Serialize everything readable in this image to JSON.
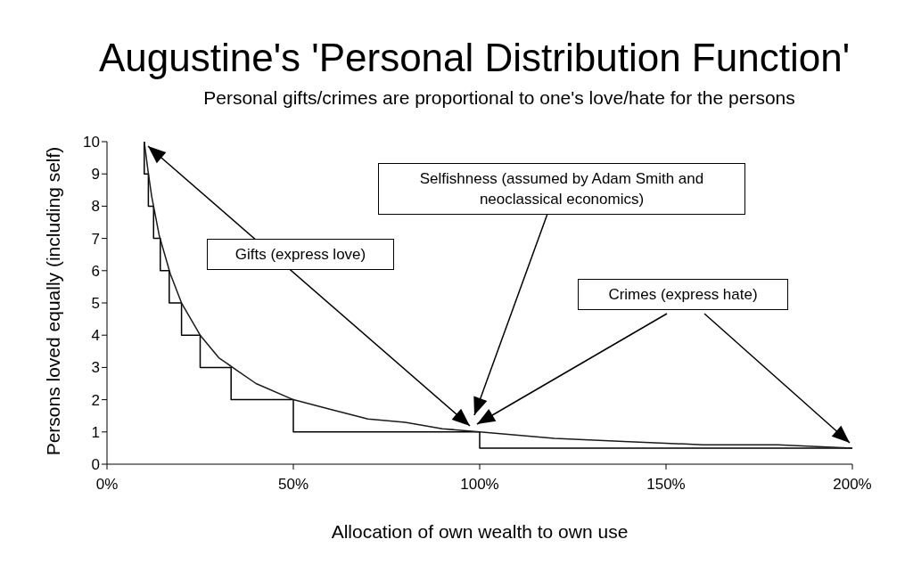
{
  "chart_data": {
    "type": "line",
    "title": "Augustine's 'Personal Distribution Function'",
    "subtitle": "Personal gifts/crimes are proportional to one's love/hate for the persons",
    "xlabel": "Allocation of own wealth to own use",
    "ylabel": "Persons loved equally (including self)",
    "series": [
      {
        "type": "step",
        "color": "#000000",
        "x": [
          10,
          10,
          11.1,
          12.5,
          14.3,
          16.7,
          20,
          25,
          33.3,
          50,
          100,
          200
        ],
        "values": [
          10,
          9,
          8,
          7,
          6,
          5,
          4,
          3,
          2,
          1,
          0.5,
          0.5
        ]
      },
      {
        "color": "#1a1a1a",
        "x": [
          10,
          11,
          12,
          13,
          14,
          15,
          17,
          20,
          25,
          30,
          35,
          40,
          50,
          60,
          70,
          80,
          90,
          100,
          120,
          140,
          160,
          180,
          200
        ],
        "values": [
          10,
          9.1,
          8.3,
          7.7,
          7.1,
          6.7,
          5.9,
          5,
          4,
          3.3,
          2.9,
          2.5,
          2,
          1.7,
          1.4,
          1.3,
          1.1,
          1,
          0.8,
          0.7,
          0.6,
          0.6,
          0.5
        ]
      }
    ],
    "xlim": [
      0,
      200
    ],
    "xticks": [
      {
        "value": 0,
        "label": "0%"
      },
      {
        "value": 50,
        "label": "50%"
      },
      {
        "value": 100,
        "label": "100%"
      },
      {
        "value": 150,
        "label": "150%"
      },
      {
        "value": 200,
        "label": "200%"
      }
    ],
    "ylim": [
      0,
      10
    ],
    "yticks": [
      0,
      1,
      2,
      3,
      4,
      5,
      6,
      7,
      8,
      9,
      10
    ],
    "annotations": [
      "Gifts (express love)",
      "Selfishness (assumed by Adam Smith and neoclassical economics)",
      "Crimes (express hate)"
    ],
    "grid": false,
    "legend": false,
    "marker": "none",
    "line_style": "solid"
  }
}
